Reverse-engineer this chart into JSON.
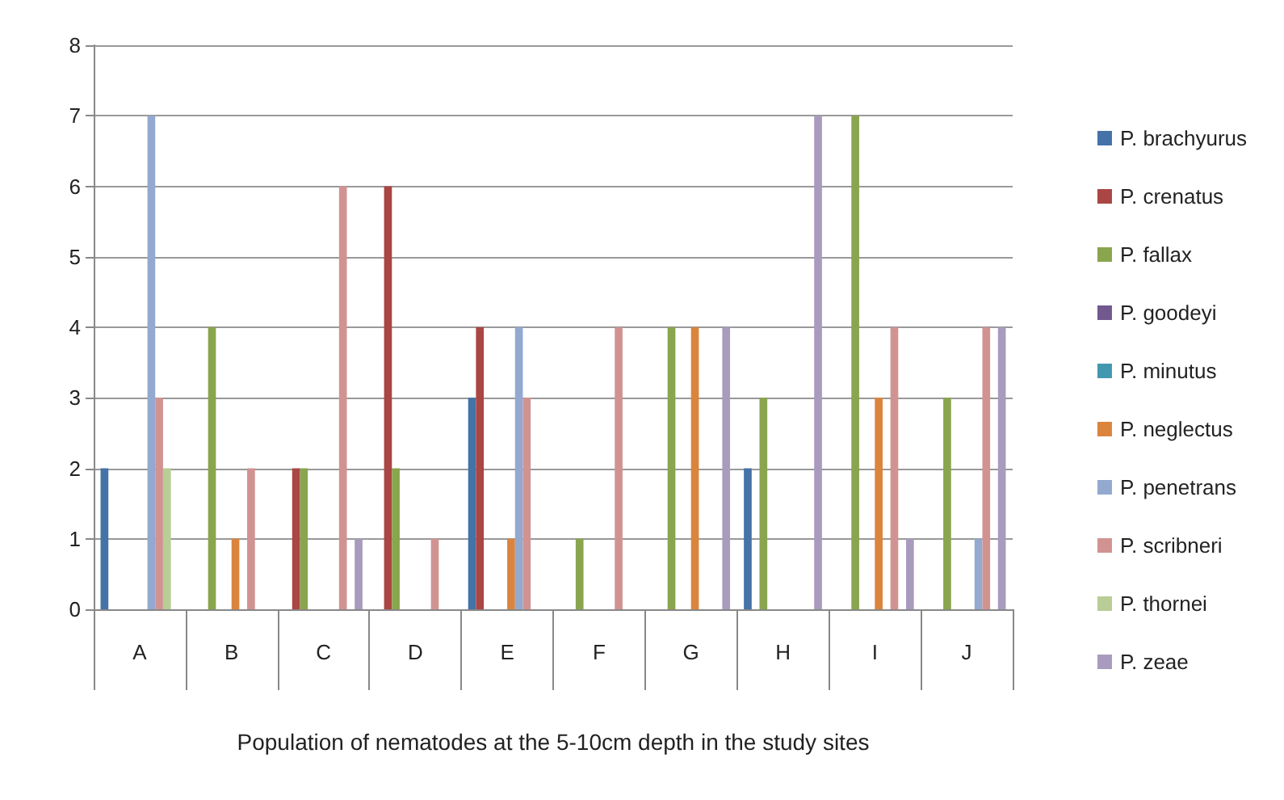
{
  "chart_data": {
    "type": "bar",
    "xlabel": "Population of nematodes at the 5-10cm depth in the study sites",
    "categories": [
      "A",
      "B",
      "C",
      "D",
      "E",
      "F",
      "G",
      "H",
      "I",
      "J"
    ],
    "series": [
      {
        "name": "P. brachyurus",
        "color": "#4572a7",
        "values": [
          2,
          0,
          0,
          0,
          3,
          0,
          0,
          2,
          0,
          0
        ]
      },
      {
        "name": "P. crenatus",
        "color": "#aa4643",
        "values": [
          0,
          0,
          2,
          6,
          4,
          0,
          0,
          0,
          0,
          0
        ]
      },
      {
        "name": "P. fallax",
        "color": "#89a54e",
        "values": [
          0,
          4,
          2,
          2,
          0,
          1,
          4,
          3,
          7,
          3
        ]
      },
      {
        "name": "P. goodeyi",
        "color": "#71588f",
        "values": [
          0,
          0,
          0,
          0,
          0,
          0,
          0,
          0,
          0,
          0
        ]
      },
      {
        "name": "P. minutus",
        "color": "#4198af",
        "values": [
          0,
          0,
          0,
          0,
          0,
          0,
          0,
          0,
          0,
          0
        ]
      },
      {
        "name": "P. neglectus",
        "color": "#db843d",
        "values": [
          0,
          1,
          0,
          0,
          1,
          0,
          4,
          0,
          3,
          0
        ]
      },
      {
        "name": "P. penetrans",
        "color": "#93a9cf",
        "values": [
          7,
          0,
          0,
          0,
          4,
          0,
          0,
          0,
          0,
          1
        ]
      },
      {
        "name": "P. scribneri",
        "color": "#d19392",
        "values": [
          3,
          2,
          6,
          1,
          3,
          4,
          0,
          0,
          4,
          4
        ]
      },
      {
        "name": "P. thornei",
        "color": "#b9cd96",
        "values": [
          2,
          0,
          0,
          0,
          0,
          0,
          0,
          0,
          0,
          0
        ]
      },
      {
        "name": "P. zeae",
        "color": "#a99bbd",
        "values": [
          0,
          0,
          1,
          0,
          0,
          0,
          4,
          7,
          1,
          4
        ]
      }
    ],
    "ylim": [
      0,
      8
    ],
    "yticks": [
      0,
      1,
      2,
      3,
      4,
      5,
      6,
      7,
      8
    ],
    "grid": "y",
    "legend": "right"
  }
}
